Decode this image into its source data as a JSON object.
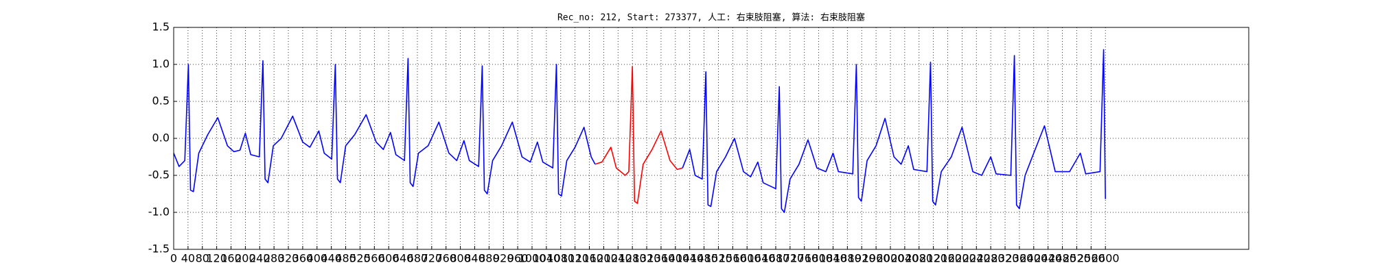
{
  "chart_data": {
    "type": "line",
    "title": "Rec_no: 212, Start: 273377, 人工: 右束肢阻塞, 算法: 右束肢阻塞",
    "xlim": [
      0,
      3000
    ],
    "xticks": [
      0,
      40,
      80,
      120,
      160,
      200,
      240,
      280,
      320,
      360,
      400,
      440,
      480,
      520,
      560,
      600,
      640,
      680,
      720,
      760,
      800,
      840,
      880,
      920,
      960,
      1000,
      1040,
      1080,
      1120,
      1160,
      1200,
      1240,
      1280,
      1320,
      1360,
      1400,
      1440,
      1480,
      1520,
      1560,
      1600,
      1640,
      1680,
      1720,
      1760,
      1800,
      1840,
      1880,
      1920,
      1960,
      2000,
      2040,
      2080,
      2120,
      2160,
      2200,
      2240,
      2280,
      2320,
      2360,
      2400,
      2440,
      2480,
      2520,
      2560,
      2600
    ],
    "ylim": [
      -1.5,
      1.5
    ],
    "yticks": [
      -1.5,
      {
        "value": -1,
        "label": "-1.0"
      },
      -0.5,
      {
        "value": 0,
        "label": "0.0"
      },
      0.5,
      {
        "value": 1,
        "label": "1.0"
      },
      1.5
    ],
    "grid": true,
    "series": [
      {
        "color": "#0000ff",
        "x": [
          0,
          15,
          31,
          41,
          47,
          55,
          70,
          95,
          123,
          150,
          168,
          185,
          200,
          215,
          239,
          249,
          255,
          263,
          278,
          300,
          332,
          360,
          380,
          405,
          420,
          441,
          451,
          457,
          465,
          480,
          505,
          537,
          565,
          585,
          605,
          620,
          644,
          654,
          660,
          668,
          683,
          710,
          740,
          768,
          790,
          810,
          825,
          851,
          861,
          867,
          875,
          890,
          915,
          945,
          972,
          995,
          1015,
          1030,
          1058,
          1068,
          1074,
          1082,
          1097,
          1120,
          1145,
          1165,
          1176
        ],
        "values": [
          -0.2,
          -0.38,
          -0.3,
          1.0,
          -0.7,
          -0.72,
          -0.2,
          0.05,
          0.28,
          -0.1,
          -0.18,
          -0.16,
          0.07,
          -0.22,
          -0.25,
          1.05,
          -0.55,
          -0.6,
          -0.1,
          0.0,
          0.3,
          -0.05,
          -0.12,
          0.1,
          -0.2,
          -0.28,
          1.0,
          -0.55,
          -0.6,
          -0.1,
          0.05,
          0.32,
          -0.05,
          -0.15,
          0.08,
          -0.22,
          -0.3,
          1.08,
          -0.6,
          -0.65,
          -0.2,
          -0.1,
          0.22,
          -0.2,
          -0.3,
          -0.03,
          -0.3,
          -0.38,
          0.98,
          -0.7,
          -0.75,
          -0.3,
          -0.1,
          0.22,
          -0.25,
          -0.32,
          -0.05,
          -0.32,
          -0.4,
          1.0,
          -0.75,
          -0.78,
          -0.3,
          -0.12,
          0.15,
          -0.25,
          -0.35
        ]
      },
      {
        "color": "#ff0000",
        "x": [
          1176,
          1195,
          1220,
          1235,
          1260,
          1270,
          1280,
          1286,
          1294,
          1310,
          1335,
          1360,
          1385,
          1405,
          1420
        ],
        "values": [
          -0.35,
          -0.32,
          -0.12,
          -0.4,
          -0.5,
          -0.45,
          0.97,
          -0.85,
          -0.88,
          -0.35,
          -0.15,
          0.1,
          -0.3,
          -0.42,
          -0.4
        ]
      },
      {
        "color": "#0000ff",
        "x": [
          1420,
          1440,
          1455,
          1475,
          1485,
          1491,
          1499,
          1515,
          1540,
          1565,
          1590,
          1610,
          1630,
          1645,
          1680,
          1690,
          1696,
          1704,
          1720,
          1745,
          1770,
          1795,
          1820,
          1840,
          1855,
          1895,
          1905,
          1911,
          1919,
          1935,
          1960,
          1985,
          2010,
          2030,
          2050,
          2065,
          2102,
          2112,
          2118,
          2126,
          2142,
          2170,
          2200,
          2230,
          2255,
          2280,
          2295,
          2336,
          2346,
          2352,
          2360,
          2376,
          2400,
          2430,
          2460,
          2500,
          2530,
          2545,
          2585,
          2595,
          2600
        ],
        "values": [
          -0.4,
          -0.15,
          -0.5,
          -0.55,
          0.9,
          -0.9,
          -0.92,
          -0.45,
          -0.25,
          0.0,
          -0.45,
          -0.52,
          -0.32,
          -0.6,
          -0.68,
          0.7,
          -0.95,
          -1.0,
          -0.55,
          -0.35,
          -0.02,
          -0.4,
          -0.45,
          -0.2,
          -0.45,
          -0.48,
          1.0,
          -0.8,
          -0.85,
          -0.3,
          -0.1,
          0.27,
          -0.25,
          -0.35,
          -0.1,
          -0.42,
          -0.45,
          1.03,
          -0.85,
          -0.9,
          -0.45,
          -0.25,
          0.15,
          -0.45,
          -0.5,
          -0.25,
          -0.48,
          -0.5,
          1.12,
          -0.9,
          -0.95,
          -0.5,
          -0.2,
          0.17,
          -0.45,
          -0.45,
          -0.2,
          -0.48,
          -0.45,
          1.2,
          -0.82
        ]
      }
    ]
  }
}
